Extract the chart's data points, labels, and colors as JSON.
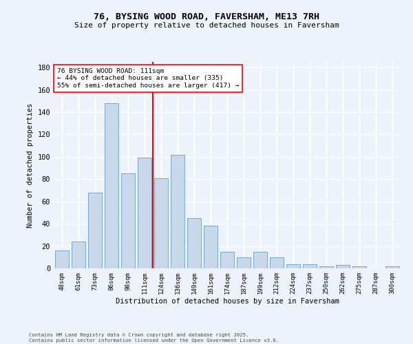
{
  "title_line1": "76, BYSING WOOD ROAD, FAVERSHAM, ME13 7RH",
  "title_line2": "Size of property relative to detached houses in Faversham",
  "xlabel": "Distribution of detached houses by size in Faversham",
  "ylabel": "Number of detached properties",
  "categories": [
    "48sqm",
    "61sqm",
    "73sqm",
    "86sqm",
    "98sqm",
    "111sqm",
    "124sqm",
    "136sqm",
    "149sqm",
    "161sqm",
    "174sqm",
    "187sqm",
    "199sqm",
    "212sqm",
    "224sqm",
    "237sqm",
    "250sqm",
    "262sqm",
    "275sqm",
    "287sqm",
    "300sqm"
  ],
  "values": [
    16,
    24,
    68,
    148,
    85,
    99,
    81,
    102,
    45,
    38,
    15,
    10,
    15,
    10,
    4,
    4,
    2,
    3,
    2,
    0,
    2
  ],
  "bar_color": "#c8d8e8",
  "bar_edge_color": "#7aa8cc",
  "background_color": "#eef2fb",
  "grid_color": "#ffffff",
  "vline_x": 5,
  "vline_color": "red",
  "annotation_text": "76 BYSING WOOD ROAD: 111sqm\n← 44% of detached houses are smaller (335)\n55% of semi-detached houses are larger (417) →",
  "annotation_box_color": "white",
  "annotation_box_edge_color": "red",
  "ylim": [
    0,
    185
  ],
  "yticks": [
    0,
    20,
    40,
    60,
    80,
    100,
    120,
    140,
    160,
    180
  ],
  "footer_line1": "Contains HM Land Registry data © Crown copyright and database right 2025.",
  "footer_line2": "Contains public sector information licensed under the Open Government Licence v3.0."
}
